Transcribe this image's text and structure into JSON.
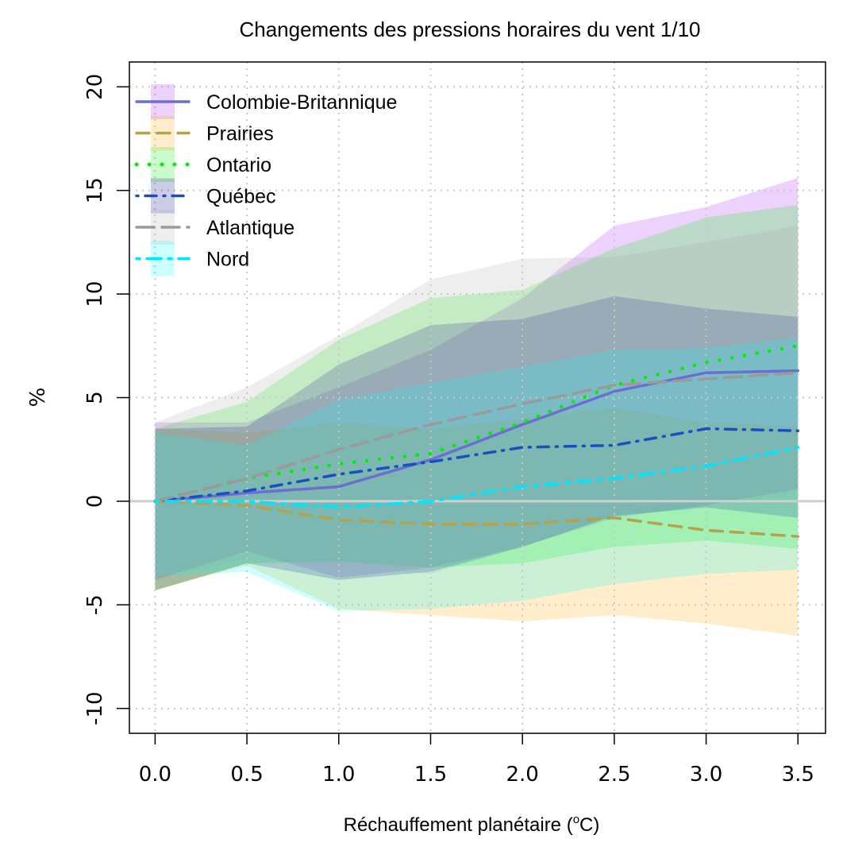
{
  "chart_data": {
    "type": "line",
    "title": "Changements des pressions horaires du vent 1/10",
    "xlabel_main": "Réchauffement planétaire (",
    "xlabel_sup": "o",
    "xlabel_tail": "C)",
    "ylabel": "%",
    "x": [
      0.0,
      0.5,
      1.0,
      1.5,
      2.0,
      2.5,
      3.0,
      3.5
    ],
    "x_tick_labels": [
      "0.0",
      "0.5",
      "1.0",
      "1.5",
      "2.0",
      "2.5",
      "3.0",
      "3.5"
    ],
    "y_ticks": [
      -10,
      -5,
      0,
      5,
      10,
      15,
      20
    ],
    "y_tick_labels": [
      "-10",
      "-5",
      "0",
      "5",
      "10",
      "15",
      "20"
    ],
    "xlim": [
      -0.14,
      3.65
    ],
    "ylim": [
      -11.2,
      21.2
    ],
    "grid": true,
    "legend_position": "top-left",
    "series": [
      {
        "name": "Colombie-Britannique",
        "color": "#a020f0",
        "line_color": "#6a6fd0",
        "dash": "solid",
        "values": [
          0.0,
          0.4,
          0.7,
          2.0,
          3.7,
          5.3,
          6.2,
          6.3
        ],
        "upper": [
          3.8,
          3.8,
          5.5,
          7.3,
          9.8,
          13.3,
          14.2,
          15.6
        ],
        "lower": [
          -3.8,
          -2.4,
          -3.7,
          -3.2,
          -2.2,
          -0.8,
          -0.2,
          0.6
        ]
      },
      {
        "name": "Prairies",
        "color": "#ffa500",
        "line_color": "#b3a24e",
        "dash": "long",
        "values": [
          0.0,
          -0.2,
          -0.9,
          -1.1,
          -1.1,
          -0.8,
          -1.4,
          -1.7
        ],
        "upper": [
          3.5,
          3.3,
          3.8,
          3.5,
          4.0,
          4.5,
          3.8,
          3.6
        ],
        "lower": [
          -4.3,
          -3.1,
          -5.2,
          -5.5,
          -5.8,
          -5.5,
          -5.9,
          -6.5
        ]
      },
      {
        "name": "Ontario",
        "color": "#00ee00",
        "line_color": "#00ee00",
        "dash": "dot",
        "values": [
          0.0,
          1.1,
          1.8,
          2.3,
          3.8,
          5.6,
          6.7,
          7.5
        ],
        "upper": [
          3.5,
          4.8,
          7.8,
          9.8,
          10.2,
          12.2,
          13.7,
          14.3
        ],
        "lower": [
          -4.3,
          -3.0,
          -2.9,
          -3.2,
          -3.0,
          -2.2,
          -1.9,
          -2.3
        ]
      },
      {
        "name": "Québec",
        "color": "#00008b",
        "line_color": "#1a4fc0",
        "dash": "dotdash",
        "values": [
          0.0,
          0.5,
          1.3,
          1.9,
          2.6,
          2.7,
          3.5,
          3.4
        ],
        "upper": [
          3.5,
          3.6,
          6.6,
          8.5,
          8.8,
          9.9,
          9.3,
          8.9
        ],
        "lower": [
          -4.3,
          -3.0,
          -3.8,
          -3.4,
          -2.2,
          -0.7,
          -0.3,
          -0.8
        ]
      },
      {
        "name": "Atlantique",
        "color": "#a8a8a8",
        "line_color": "#9a9a9a",
        "dash": "longdash",
        "values": [
          0.0,
          1.1,
          2.5,
          3.7,
          4.7,
          5.6,
          5.9,
          6.2
        ],
        "upper": [
          3.8,
          5.5,
          8.0,
          10.7,
          11.7,
          11.8,
          12.5,
          13.3
        ],
        "lower": [
          -3.7,
          -2.8,
          -3.2,
          -3.5,
          -2.2,
          -0.5,
          0.1,
          0.5
        ]
      },
      {
        "name": "Nord",
        "color": "#00ffff",
        "line_color": "#00e5ff",
        "dash": "dashdot",
        "values": [
          0.0,
          0.0,
          -0.3,
          0.0,
          0.7,
          1.1,
          1.7,
          2.6
        ],
        "upper": [
          3.3,
          2.7,
          4.9,
          5.7,
          6.5,
          7.3,
          7.4,
          7.9
        ],
        "lower": [
          -3.6,
          -3.4,
          -5.3,
          -5.2,
          -4.8,
          -4.0,
          -3.5,
          -3.3
        ]
      }
    ]
  }
}
